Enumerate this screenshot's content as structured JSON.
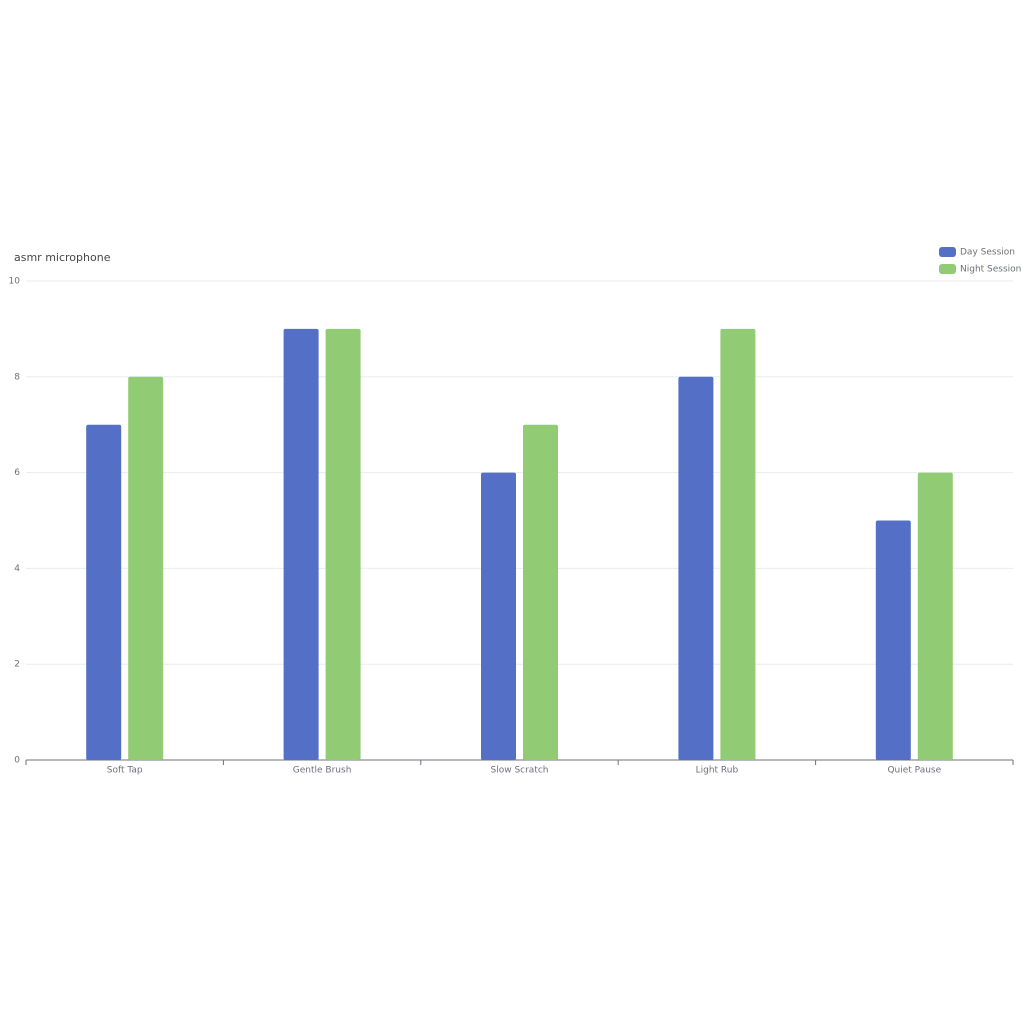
{
  "chart_data": {
    "type": "bar",
    "title": "asmr microphone",
    "categories": [
      "Soft Tap",
      "Gentle Brush",
      "Slow Scratch",
      "Light Rub",
      "Quiet Pause"
    ],
    "series": [
      {
        "name": "Day Session",
        "color": "#5470c6",
        "values": [
          7,
          9,
          6,
          8,
          5
        ]
      },
      {
        "name": "Night Session",
        "color": "#91cc75",
        "values": [
          8,
          9,
          7,
          9,
          6
        ]
      }
    ],
    "ylim": [
      0,
      10
    ],
    "yticks": [
      0,
      2,
      4,
      6,
      8,
      10
    ],
    "grid": true,
    "legend": "top-right"
  }
}
